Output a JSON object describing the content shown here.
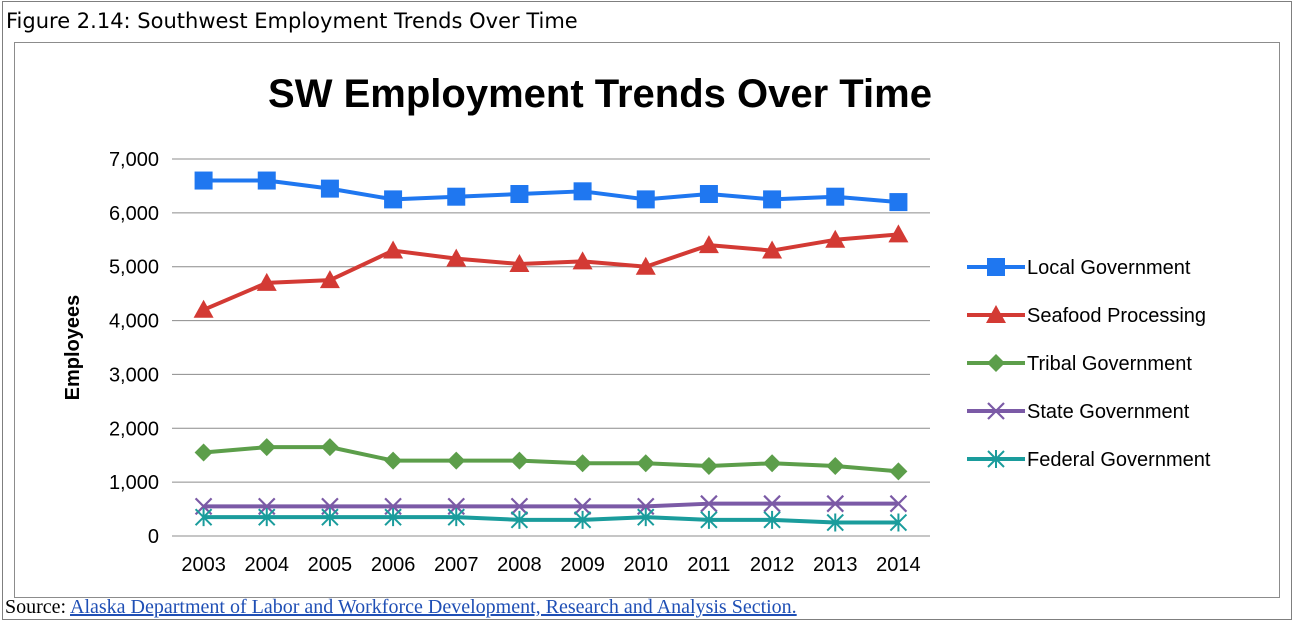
{
  "figure": {
    "caption": "Figure 2.14: Southwest Employment Trends Over Time",
    "source_label": "Source:",
    "source_link": "Alaska Department of Labor and Workforce Development, Research and Analysis Section."
  },
  "chart_data": {
    "type": "line",
    "title": "SW Employment Trends Over Time",
    "xlabel": "",
    "ylabel": "Employees",
    "ylim": [
      0,
      7000
    ],
    "yticks": [
      "0",
      "1,000",
      "2,000",
      "3,000",
      "4,000",
      "5,000",
      "6,000",
      "7,000"
    ],
    "grid": "horizontal",
    "legend_position": "right",
    "categories": [
      "2003",
      "2004",
      "2005",
      "2006",
      "2007",
      "2008",
      "2009",
      "2010",
      "2011",
      "2012",
      "2013",
      "2014"
    ],
    "series": [
      {
        "name": "Local Government",
        "color": "#1f77f0",
        "marker": "square",
        "values": [
          6600,
          6600,
          6450,
          6250,
          6300,
          6350,
          6400,
          6250,
          6350,
          6250,
          6300,
          6200
        ]
      },
      {
        "name": "Seafood Processing",
        "color": "#d33a34",
        "marker": "triangle",
        "values": [
          4200,
          4700,
          4750,
          5300,
          5150,
          5050,
          5100,
          5000,
          5400,
          5300,
          5500,
          5600
        ]
      },
      {
        "name": "Tribal Government",
        "color": "#5c9e4a",
        "marker": "diamond",
        "values": [
          1550,
          1650,
          1650,
          1400,
          1400,
          1400,
          1350,
          1350,
          1300,
          1350,
          1300,
          1200
        ]
      },
      {
        "name": "State Government",
        "color": "#7b5aa6",
        "marker": "x",
        "values": [
          550,
          550,
          550,
          550,
          550,
          550,
          550,
          550,
          600,
          600,
          600,
          600
        ]
      },
      {
        "name": "Federal Government",
        "color": "#1a9c9c",
        "marker": "star",
        "values": [
          350,
          350,
          350,
          350,
          350,
          300,
          300,
          350,
          300,
          300,
          250,
          250
        ]
      }
    ]
  }
}
